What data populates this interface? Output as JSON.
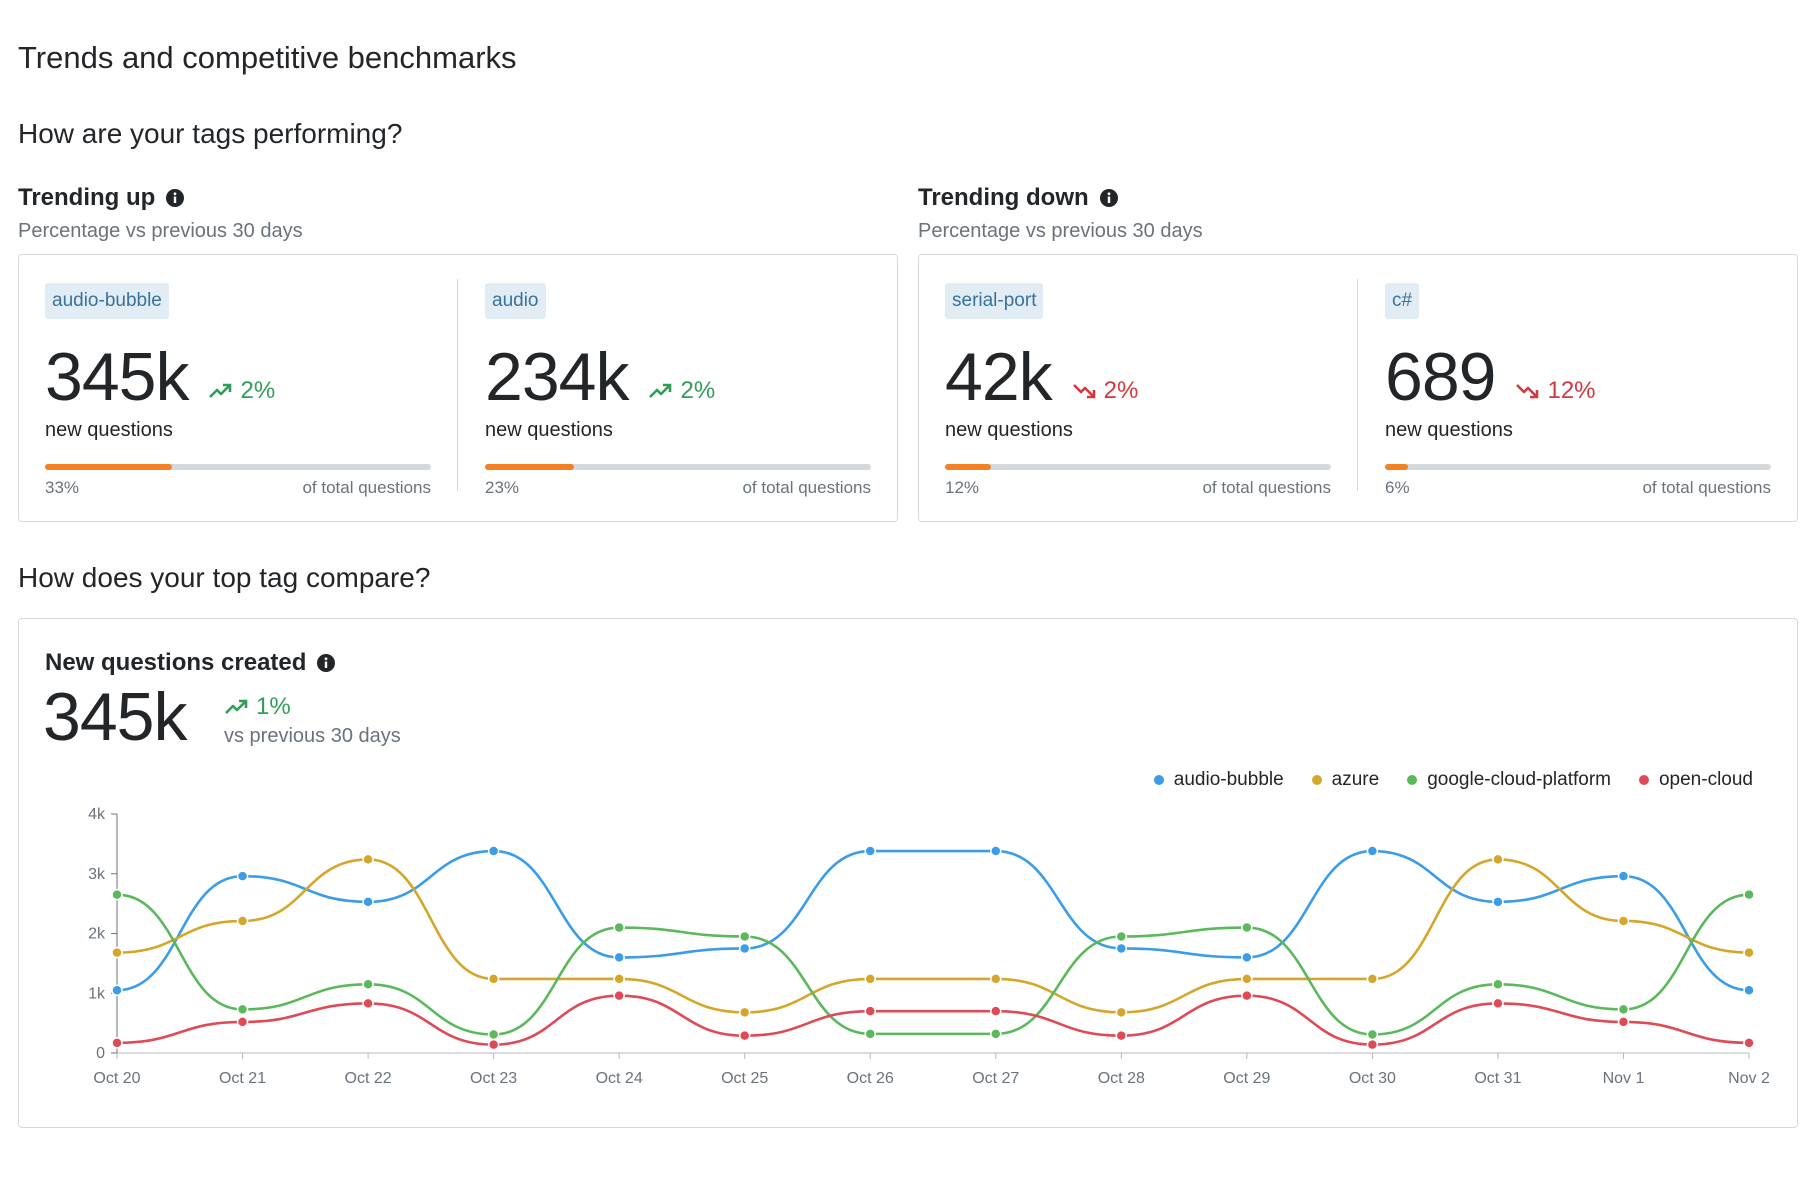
{
  "page": {
    "title": "Trends and competitive benchmarks"
  },
  "sections": {
    "tags_performing": "How are your tags performing?",
    "top_tag_compare": "How does your top tag compare?"
  },
  "trending_up": {
    "title": "Trending up",
    "subtitle": "Percentage vs previous 30 days",
    "tiles": [
      {
        "tag": "audio-bubble",
        "value": "345k",
        "change": "2%",
        "caption": "new questions",
        "share": "33%",
        "share_fraction": 0.33,
        "share_label": "of total questions"
      },
      {
        "tag": "audio",
        "value": "234k",
        "change": "2%",
        "caption": "new questions",
        "share": "23%",
        "share_fraction": 0.23,
        "share_label": "of total questions"
      }
    ]
  },
  "trending_down": {
    "title": "Trending down",
    "subtitle": "Percentage vs previous 30 days",
    "tiles": [
      {
        "tag": "serial-port",
        "value": "42k",
        "change": "2%",
        "caption": "new questions",
        "share": "12%",
        "share_fraction": 0.12,
        "share_label": "of total questions"
      },
      {
        "tag": "c#",
        "value": "689",
        "change": "12%",
        "caption": "new questions",
        "share": "6%",
        "share_fraction": 0.06,
        "share_label": "of total questions"
      }
    ]
  },
  "chart_card": {
    "title": "New questions created",
    "value": "345k",
    "change": "1%",
    "vs_label": "vs previous 30 days"
  },
  "colors": {
    "trend_up": "#2f9e57",
    "trend_down": "#d0393e",
    "bar_fill": "#f48024",
    "bar_track": "#d6d9dc",
    "tag_bg": "#e1ecf4",
    "tag_text": "#39739d"
  },
  "icons": {
    "info": "info-circle-icon",
    "trend_up": "trend-up-arrow-icon",
    "trend_down": "trend-down-arrow-icon"
  },
  "chart_data": {
    "type": "line",
    "title": "New questions created",
    "x": [
      "Oct 20",
      "Oct 21",
      "Oct 22",
      "Oct 23",
      "Oct 24",
      "Oct 25",
      "Oct 26",
      "Oct 27",
      "Oct 28",
      "Oct 29",
      "Oct 30",
      "Oct 31",
      "Nov 1",
      "Nov 2"
    ],
    "y_ticks": [
      "0",
      "1k",
      "2k",
      "3k",
      "4k"
    ],
    "ylim": [
      0,
      4000
    ],
    "grid": false,
    "legend_position": "top-right",
    "curve": "smooth",
    "series": [
      {
        "name": "audio-bubble",
        "color": "#3b9ce8",
        "values": [
          1050,
          2960,
          2530,
          3380,
          1600,
          1750,
          3380,
          3380,
          1750,
          1600,
          3380,
          2530,
          2960,
          1050
        ]
      },
      {
        "name": "azure",
        "color": "#d4a72c",
        "values": [
          1680,
          2210,
          3240,
          1240,
          1240,
          680,
          1240,
          1240,
          680,
          1240,
          1240,
          3240,
          2210,
          1680
        ]
      },
      {
        "name": "google-cloud-platform",
        "color": "#5cb85c",
        "values": [
          2650,
          730,
          1150,
          310,
          2100,
          1950,
          320,
          320,
          1950,
          2100,
          310,
          1150,
          730,
          2650
        ]
      },
      {
        "name": "open-cloud",
        "color": "#de4b57",
        "values": [
          170,
          520,
          830,
          140,
          960,
          290,
          700,
          700,
          290,
          960,
          140,
          830,
          520,
          170
        ]
      }
    ]
  }
}
